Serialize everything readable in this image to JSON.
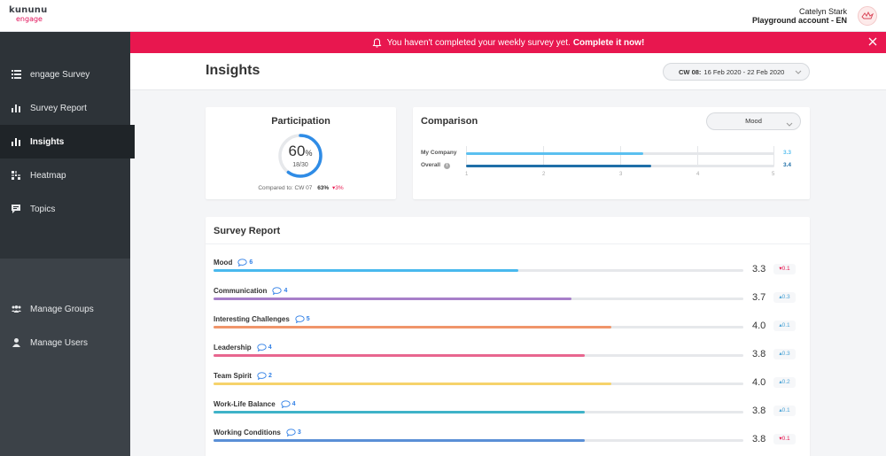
{
  "brand": {
    "logo_top": "kununu",
    "logo_bottom": "engage"
  },
  "user": {
    "name": "Catelyn Stark",
    "account": "Playground account - EN"
  },
  "sidebar": {
    "items": [
      {
        "label": "engage Survey",
        "icon": "list-icon"
      },
      {
        "label": "Survey Report",
        "icon": "bar-chart-icon"
      },
      {
        "label": "Insights",
        "icon": "bar-chart-icon",
        "active": true
      },
      {
        "label": "Heatmap",
        "icon": "heatmap-icon"
      },
      {
        "label": "Topics",
        "icon": "chat-bubble-icon"
      }
    ],
    "bottom_items": [
      {
        "label": "Manage Groups",
        "icon": "group-icon"
      },
      {
        "label": "Manage Users",
        "icon": "user-icon"
      }
    ]
  },
  "alert": {
    "message": "You haven't completed your weekly survey yet.",
    "cta": "Complete it now!",
    "color": "#e8174f"
  },
  "header": {
    "title": "Insights",
    "week_label": "CW 08:",
    "week_range": "16 Feb 2020 - 22 Feb 2020"
  },
  "participation": {
    "title": "Participation",
    "percent": "60",
    "percent_sign": "%",
    "percent_value": 0.6,
    "count": "18/30",
    "compared_to": "Compared to: CW 07",
    "compared_value": "63%",
    "compared_delta": "▾3%"
  },
  "comparison": {
    "title": "Comparison",
    "selected": "Mood",
    "rows": [
      {
        "label": "My Company",
        "value": "3.3",
        "num": 3.3,
        "color": "#5bc0f0"
      },
      {
        "label": "Overall",
        "value": "3.4",
        "num": 3.4,
        "color": "#1f6fa8"
      }
    ],
    "ticks": [
      "1",
      "2",
      "3",
      "4",
      "5"
    ]
  },
  "report": {
    "title": "Survey Report",
    "metrics": [
      {
        "label": "Mood",
        "comments": "6",
        "score": "3.3",
        "num": 3.3,
        "delta": "▾0.1",
        "dir": "down",
        "color": "#49b9ee"
      },
      {
        "label": "Communication",
        "comments": "4",
        "score": "3.7",
        "num": 3.7,
        "delta": "▴0.3",
        "dir": "up",
        "color": "#a77fc9"
      },
      {
        "label": "Interesting Challenges",
        "comments": "5",
        "score": "4.0",
        "num": 4.0,
        "delta": "▴0.1",
        "dir": "up",
        "color": "#f0956a"
      },
      {
        "label": "Leadership",
        "comments": "4",
        "score": "3.8",
        "num": 3.8,
        "delta": "▴0.3",
        "dir": "up",
        "color": "#e8668f"
      },
      {
        "label": "Team Spirit",
        "comments": "2",
        "score": "4.0",
        "num": 4.0,
        "delta": "▴0.2",
        "dir": "up",
        "color": "#f6d36b"
      },
      {
        "label": "Work-Life Balance",
        "comments": "4",
        "score": "3.8",
        "num": 3.8,
        "delta": "▴0.1",
        "dir": "up",
        "color": "#3fb3c8"
      },
      {
        "label": "Working Conditions",
        "comments": "3",
        "score": "3.8",
        "num": 3.8,
        "delta": "▾0.1",
        "dir": "down",
        "color": "#5a8fd6"
      }
    ]
  }
}
